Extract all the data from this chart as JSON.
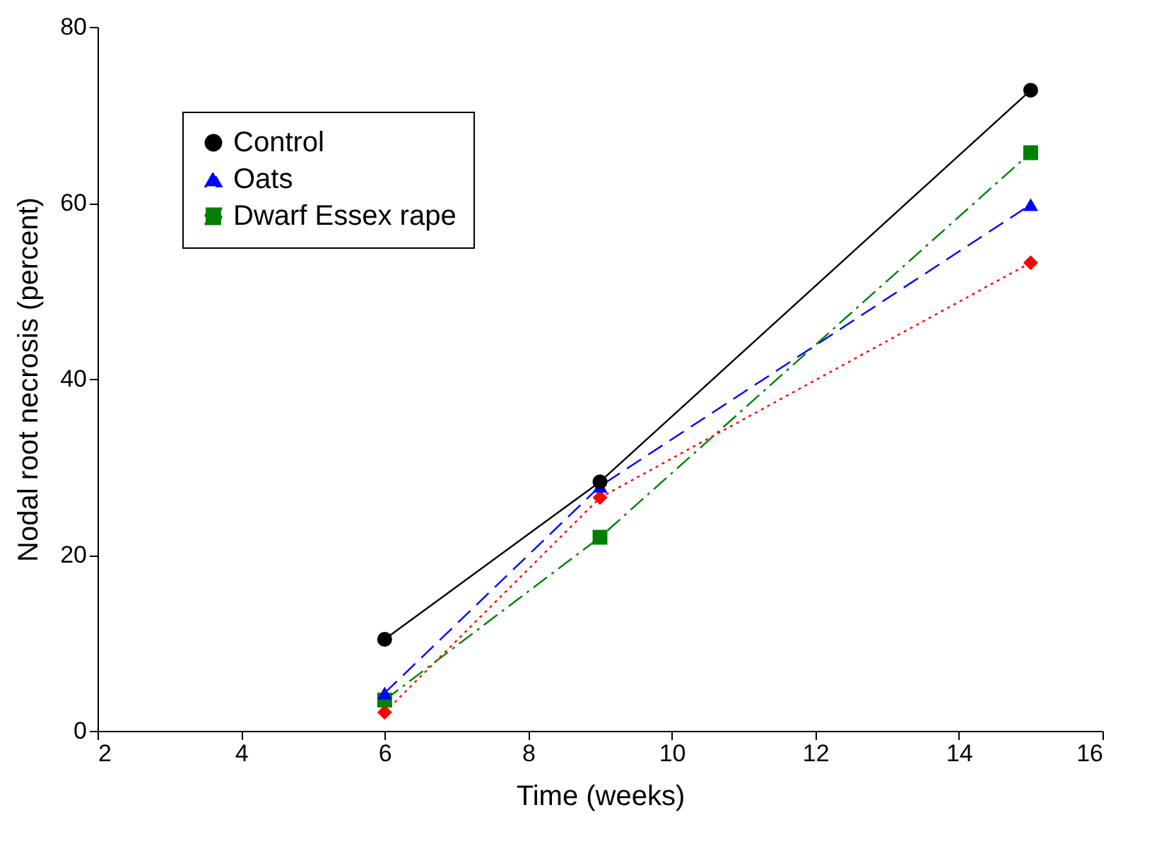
{
  "chart_data": {
    "type": "line",
    "xlabel": "Time (weeks)",
    "ylabel": "Nodal root necrosis (percent)",
    "x": [
      6,
      9,
      15
    ],
    "series": [
      {
        "name": "Control",
        "color": "#000000",
        "values": [
          10.4,
          28.3,
          72.8
        ],
        "marker": "circle",
        "line_style": "solid"
      },
      {
        "name": "Oats",
        "color": "#0000ff",
        "values": [
          4.3,
          27.8,
          59.8
        ],
        "marker": "triangle",
        "line_style": "dashed"
      },
      {
        "name": "Dwarf Essex rape",
        "color": "#008000",
        "values": [
          3.5,
          22.0,
          65.7
        ],
        "marker": "square",
        "line_style": "dashdot"
      },
      {
        "color": "#ff0000",
        "values": [
          2.1,
          26.5,
          53.2
        ],
        "marker": "diamond",
        "line_style": "dotted"
      }
    ],
    "xlim": [
      2,
      16
    ],
    "xticks": [
      2,
      4,
      6,
      8,
      10,
      12,
      14,
      16
    ],
    "ylim": [
      0,
      80
    ],
    "yticks": [
      0,
      20,
      40,
      60,
      80
    ],
    "grid": false,
    "legend": "top left"
  }
}
